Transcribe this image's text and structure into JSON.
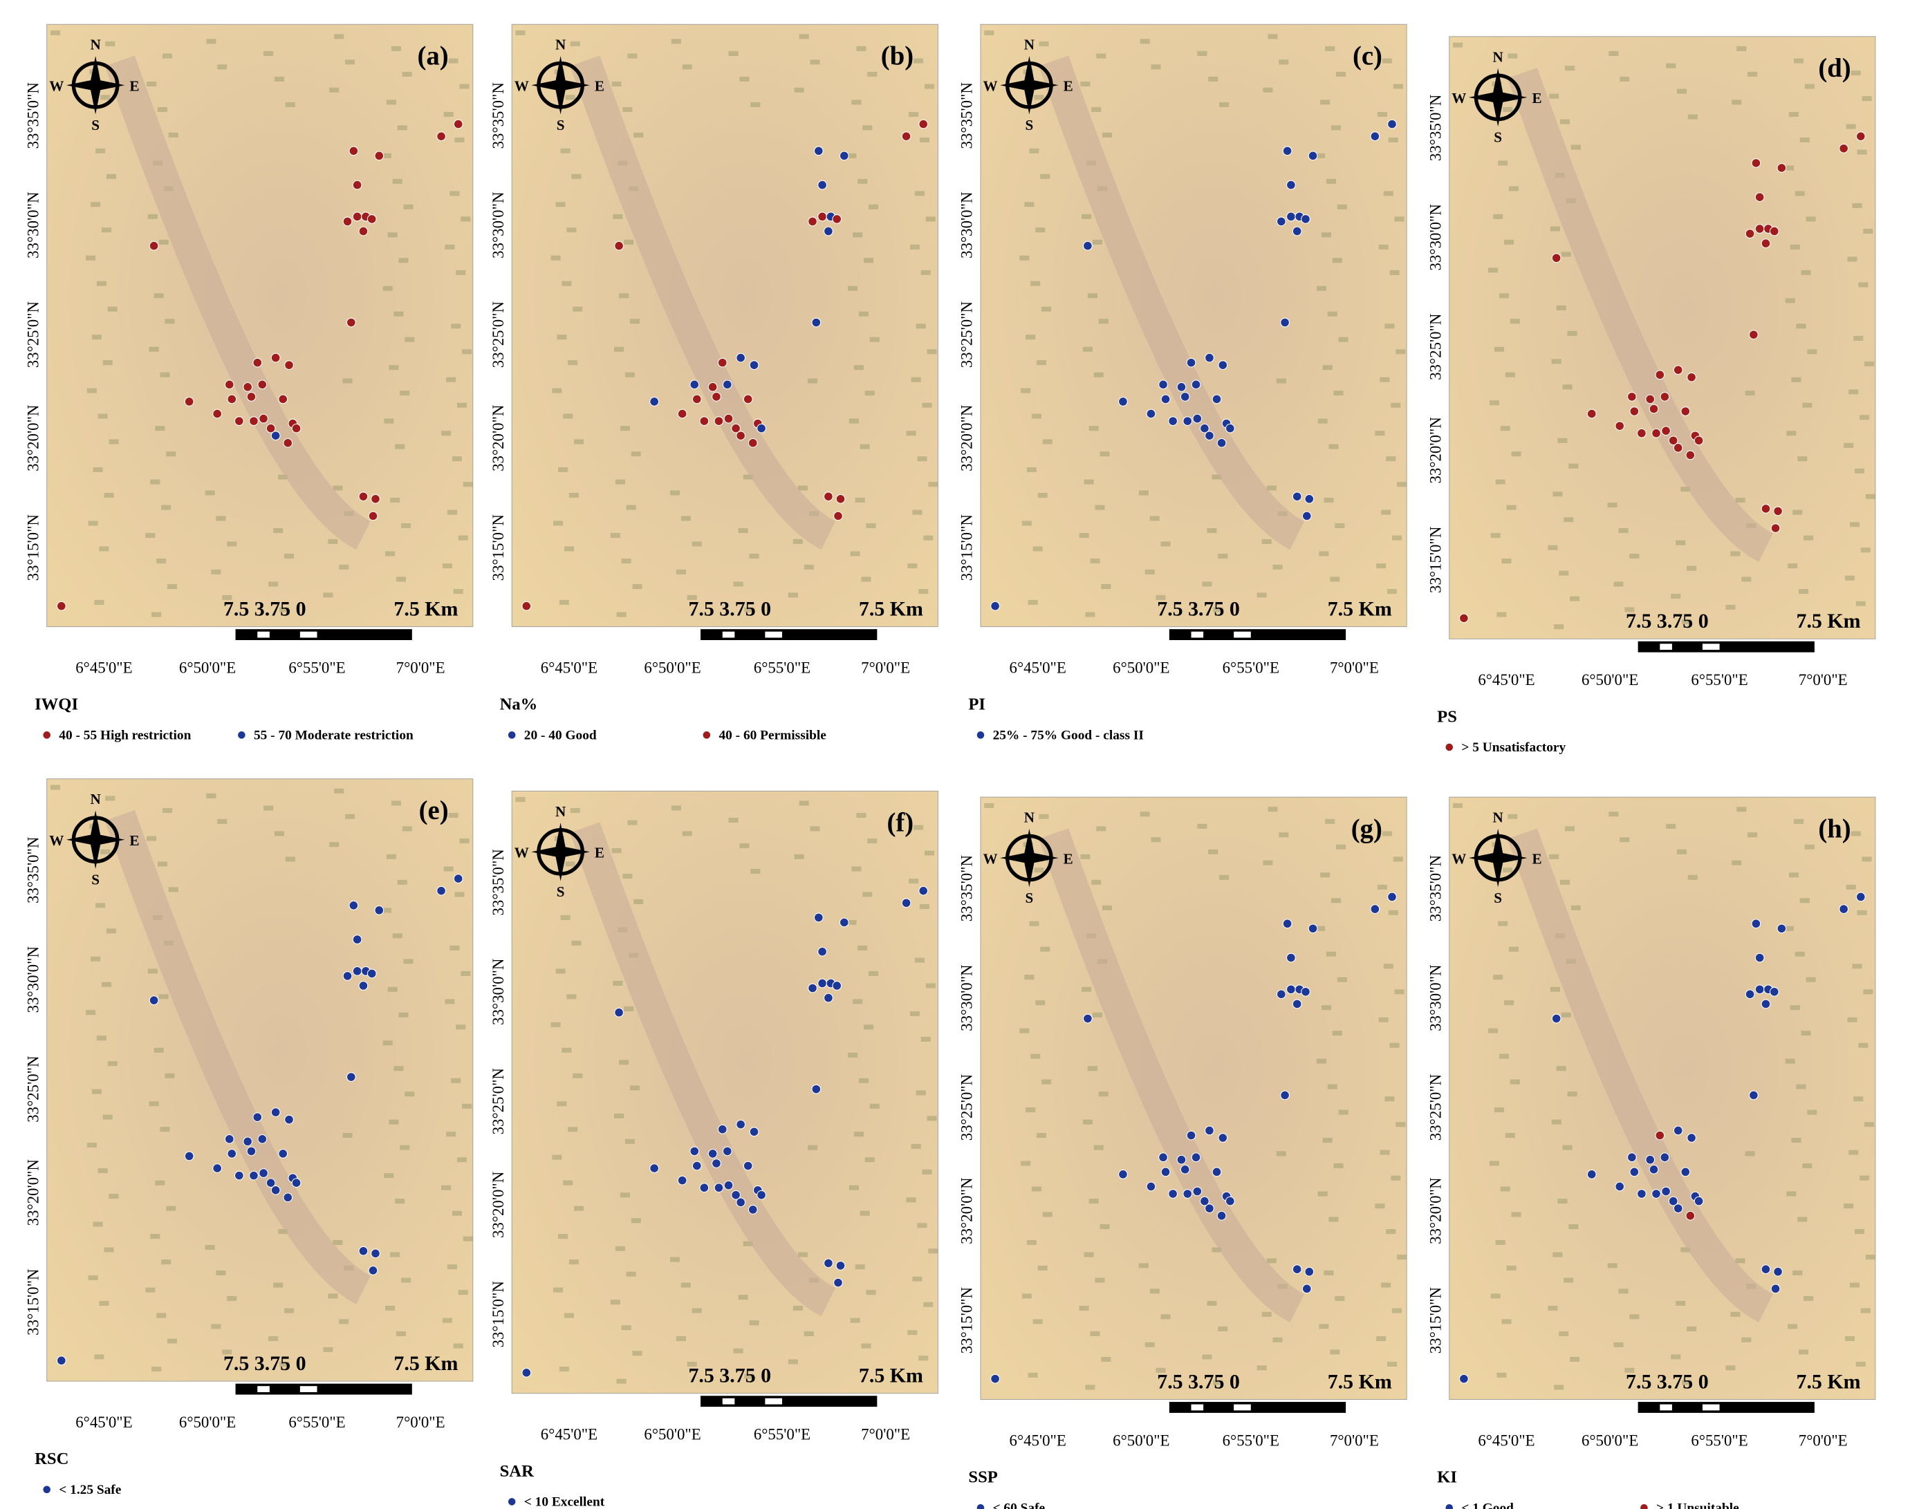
{
  "panels": [
    {
      "label": "(a)",
      "legend_title": "IWQI",
      "legend": [
        {
          "label": "40 - 55 High restriction",
          "color": "#a01c1c"
        },
        {
          "label": "55 - 70 Moderate restriction",
          "color": "#1c3796"
        }
      ]
    },
    {
      "label": "(b)",
      "legend_title": "Na%",
      "legend": [
        {
          "label": "20 - 40 Good",
          "color": "#1c3796"
        },
        {
          "label": "40 - 60 Permissible",
          "color": "#a01c1c"
        }
      ]
    },
    {
      "label": "(c)",
      "legend_title": "PI",
      "legend": [
        {
          "label": "25% - 75% Good - class II",
          "color": "#1c3796"
        }
      ]
    },
    {
      "label": "(d)",
      "legend_title": "PS",
      "legend": [
        {
          "label": "> 5 Unsatisfactory",
          "color": "#a01c1c"
        }
      ]
    },
    {
      "label": "(e)",
      "legend_title": "RSC",
      "legend": [
        {
          "label": "< 1.25 Safe",
          "color": "#1c3796"
        }
      ]
    },
    {
      "label": "(f)",
      "legend_title": "SAR",
      "legend": [
        {
          "label": "< 10 Excellent",
          "color": "#1c3796"
        }
      ]
    },
    {
      "label": "(g)",
      "legend_title": "SSP",
      "legend": [
        {
          "label": "< 60 Safe",
          "color": "#1c3796"
        }
      ]
    },
    {
      "label": "(h)",
      "legend_title": "KI",
      "legend": [
        {
          "label": "< 1 Good",
          "color": "#1c3796"
        },
        {
          "label": "> 1 Unsuitable",
          "color": "#a01c1c"
        }
      ]
    }
  ],
  "lat_labels": [
    "33°35'0\"N",
    "33°30'0\"N",
    "33°25'0\"N",
    "33°20'0\"N",
    "33°15'0\"N"
  ],
  "lon_labels": [
    "6°45'0\"E",
    "6°50'0\"E",
    "6°55'0\"E",
    "7°0'0\"E"
  ],
  "scale": {
    "left": "7.5 3.75 0",
    "right": "7.5 Km"
  },
  "compass": {
    "n": "N",
    "s": "S",
    "e": "E",
    "w": "W"
  }
}
